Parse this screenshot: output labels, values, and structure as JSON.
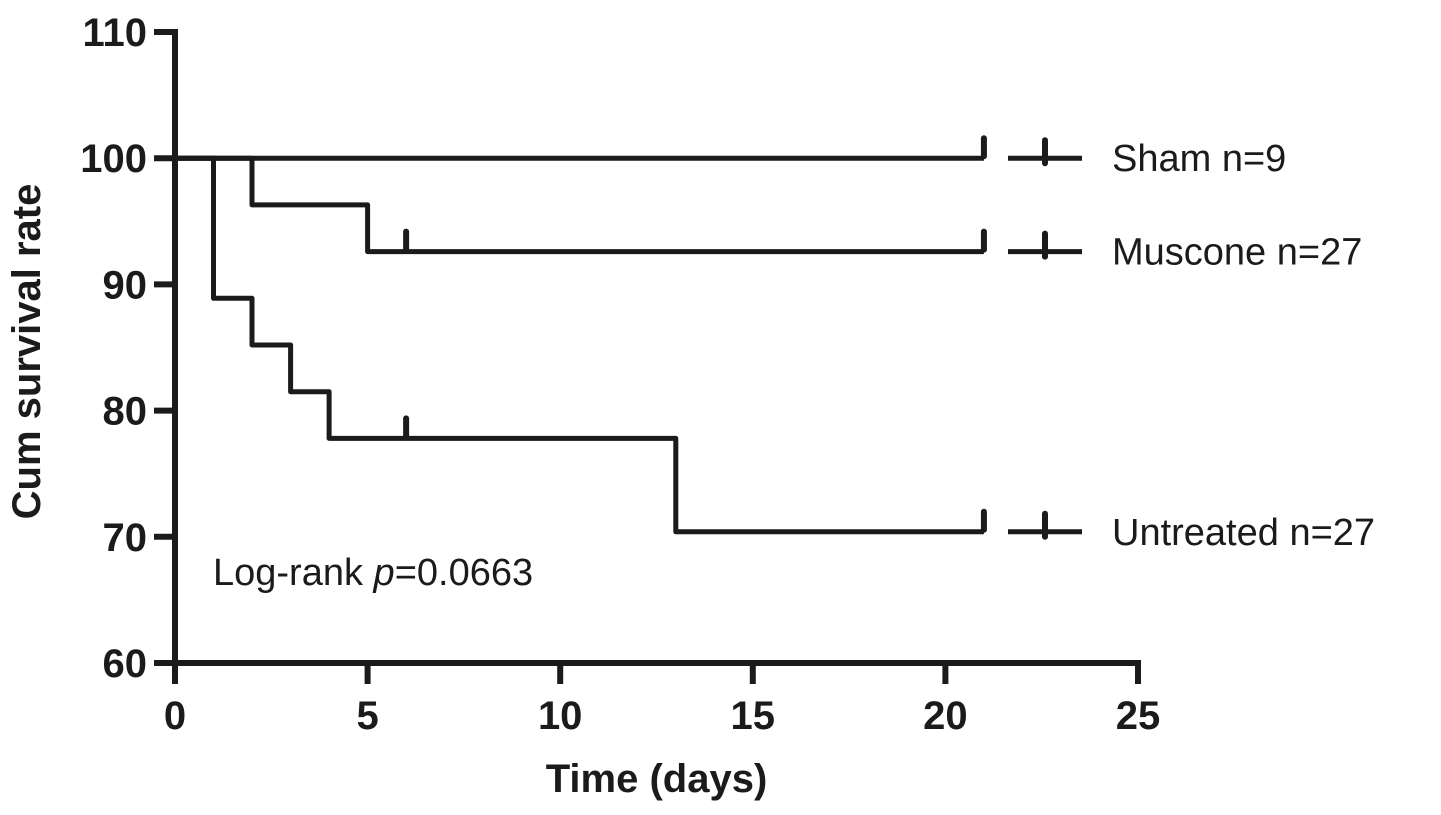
{
  "figure": {
    "background": "#ffffff",
    "ink_color": "#1b1b1b"
  },
  "chart_data": {
    "type": "line",
    "subtype": "kaplan-meier-step",
    "title": "",
    "xlabel": "Time (days)",
    "ylabel": "Cum survival rate",
    "xlim": [
      0,
      25
    ],
    "ylim": [
      60,
      110
    ],
    "xticks": [
      0,
      5,
      10,
      15,
      20,
      25
    ],
    "yticks": [
      60,
      70,
      80,
      90,
      100,
      110
    ],
    "grid": false,
    "legend_position": "right",
    "annotation": {
      "prefix": "Log-rank ",
      "p_symbol": "p",
      "value": "=0.0663"
    },
    "series": [
      {
        "name": "Sham",
        "n": 9,
        "legend_label": "Sham n=9",
        "final_value": 100,
        "points": [
          [
            0,
            100
          ],
          [
            21,
            100
          ]
        ],
        "censors": [
          {
            "x": 21,
            "y": 100
          }
        ]
      },
      {
        "name": "Muscone",
        "n": 27,
        "legend_label": "Muscone n=27",
        "final_value": 92.6,
        "points": [
          [
            0,
            100
          ],
          [
            2,
            100
          ],
          [
            2,
            96.3
          ],
          [
            5,
            96.3
          ],
          [
            5,
            92.6
          ],
          [
            21,
            92.6
          ]
        ],
        "censors": [
          {
            "x": 6,
            "y": 92.6
          },
          {
            "x": 21,
            "y": 92.6
          }
        ]
      },
      {
        "name": "Untreated",
        "n": 27,
        "legend_label": "Untreated n=27",
        "final_value": 70.4,
        "points": [
          [
            0,
            100
          ],
          [
            1,
            100
          ],
          [
            1,
            88.9
          ],
          [
            2,
            88.9
          ],
          [
            2,
            85.2
          ],
          [
            3,
            85.2
          ],
          [
            3,
            81.5
          ],
          [
            4,
            81.5
          ],
          [
            4,
            77.8
          ],
          [
            13,
            77.8
          ],
          [
            13,
            70.4
          ],
          [
            21,
            70.4
          ]
        ],
        "censors": [
          {
            "x": 6,
            "y": 77.8
          },
          {
            "x": 21,
            "y": 70.4
          }
        ]
      }
    ]
  }
}
